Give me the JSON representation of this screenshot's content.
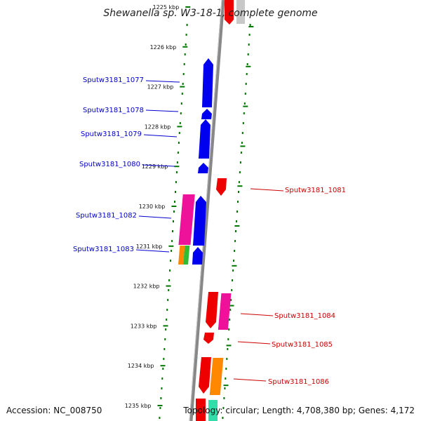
{
  "title": "Shewanella sp. W3-18-1, complete genome",
  "footer": {
    "accession": "Accession: NC_008750",
    "topology": "Topology: circular; Length: 4,708,380 bp; Genes: 4,172"
  },
  "colors": {
    "forward": "#0000ee",
    "reverse": "#ee0000",
    "backbone": "#888888",
    "ticks": "#007700",
    "magenta": "#ee1199",
    "orange": "#ff8800",
    "green": "#33bb33"
  },
  "kbp_labels": [
    "1225 kbp",
    "1226 kbp",
    "1227 kbp",
    "1228 kbp",
    "1229 kbp",
    "1230 kbp",
    "1231 kbp",
    "1232 kbp",
    "1233 kbp",
    "1234 kbp",
    "1235 kbp"
  ],
  "genes_left": [
    {
      "label": "Sputw3181_1077",
      "color": "#0000cc"
    },
    {
      "label": "Sputw3181_1078",
      "color": "#0000cc"
    },
    {
      "label": "Sputw3181_1079",
      "color": "#0000cc"
    },
    {
      "label": "Sputw3181_1080",
      "color": "#0000cc"
    },
    {
      "label": "Sputw3181_1082",
      "color": "#0000cc"
    },
    {
      "label": "Sputw3181_1083",
      "color": "#0000cc"
    }
  ],
  "genes_right": [
    {
      "label": "Sputw3181_1081",
      "color": "#cc0000"
    },
    {
      "label": "Sputw3181_1084",
      "color": "#cc0000"
    },
    {
      "label": "Sputw3181_1085",
      "color": "#cc0000"
    },
    {
      "label": "Sputw3181_1086",
      "color": "#cc0000"
    }
  ]
}
